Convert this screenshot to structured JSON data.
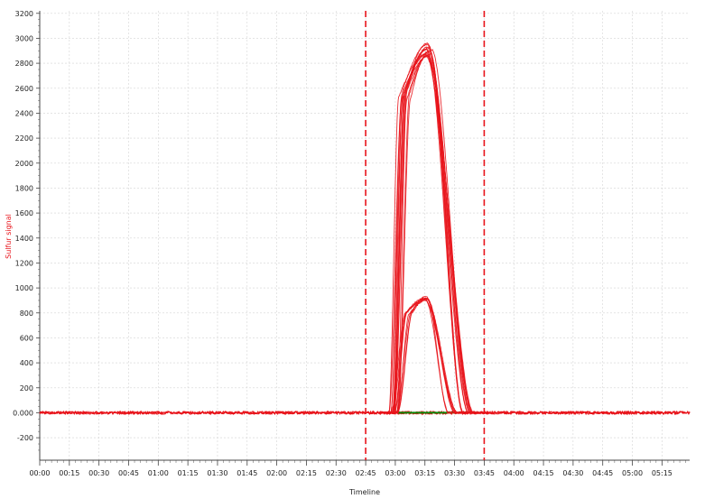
{
  "chart_data": {
    "type": "line",
    "title": "",
    "xlabel": "Timeline",
    "ylabel": "Sulfur signal",
    "x_unit": "mm:ss",
    "xlim_seconds": [
      0,
      329
    ],
    "ylim": [
      -380,
      3220
    ],
    "x_ticks": [
      "00:00",
      "00:15",
      "00:30",
      "00:45",
      "01:00",
      "01:15",
      "01:30",
      "01:45",
      "02:00",
      "02:15",
      "02:30",
      "02:45",
      "03:00",
      "03:15",
      "03:30",
      "03:45",
      "04:00",
      "04:15",
      "04:30",
      "04:45",
      "05:00",
      "05:15"
    ],
    "y_ticks": [
      {
        "value": -200,
        "label": "-200"
      },
      {
        "value": 0,
        "label": "0.000"
      },
      {
        "value": 200,
        "label": "200"
      },
      {
        "value": 400,
        "label": "400"
      },
      {
        "value": 600,
        "label": "600"
      },
      {
        "value": 800,
        "label": "800"
      },
      {
        "value": 1000,
        "label": "1000"
      },
      {
        "value": 1200,
        "label": "1200"
      },
      {
        "value": 1400,
        "label": "1400"
      },
      {
        "value": 1600,
        "label": "1600"
      },
      {
        "value": 1800,
        "label": "1800"
      },
      {
        "value": 2000,
        "label": "2000"
      },
      {
        "value": 2200,
        "label": "2200"
      },
      {
        "value": 2400,
        "label": "2400"
      },
      {
        "value": 2600,
        "label": "2600"
      },
      {
        "value": 2800,
        "label": "2800"
      },
      {
        "value": 3000,
        "label": "3000"
      },
      {
        "value": 3200,
        "label": "3200"
      }
    ],
    "grid": true,
    "colors": {
      "signal": "#e8141b",
      "baseline": "#0a8a0a",
      "marker": "#e8141b",
      "ylabel": "#e8141b"
    },
    "markers": [
      {
        "x": "02:45",
        "style": "dashed"
      },
      {
        "x": "03:45",
        "style": "dashed"
      }
    ],
    "baseline_segment": {
      "x_start": "03:00",
      "x_end": "03:42",
      "y": 0
    },
    "series_groups": [
      {
        "peak_count": 14,
        "peak_y": 2950,
        "rise_start": "02:59",
        "rise_end": "03:05",
        "plateau_end": "03:17",
        "fall_end": "03:37"
      },
      {
        "peak_count": 8,
        "peak_y": 930,
        "rise_start": "02:59",
        "rise_end": "03:06",
        "plateau_end": "03:16",
        "fall_end": "03:29"
      }
    ]
  }
}
